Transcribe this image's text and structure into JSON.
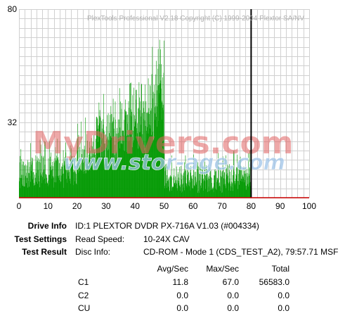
{
  "chart_data": {
    "type": "bar",
    "title": "PlexTools Professional V2.18 Copyright (C) 1999-2004 Plextor SA/NV",
    "xlabel": "",
    "ylabel": "",
    "xlim": [
      0,
      100
    ],
    "ylim": [
      0,
      80
    ],
    "x_ticks": [
      0,
      10,
      20,
      30,
      40,
      50,
      60,
      70,
      80,
      90,
      100
    ],
    "y_ticks": [
      32,
      80
    ],
    "grid": true,
    "end_marker_x": 80,
    "bar_color": "#009900",
    "marker_color": "#000000",
    "series": [
      {
        "metric": "C1",
        "segments": [
          {
            "x_start": 0,
            "x_end": 20,
            "typical_min": 4,
            "typical_max": 18,
            "peak": 25
          },
          {
            "x_start": 20,
            "x_end": 26,
            "typical_min": 10,
            "typical_max": 27,
            "peak": 34
          },
          {
            "x_start": 26,
            "x_end": 34,
            "typical_min": 14,
            "typical_max": 36,
            "peak": 44
          },
          {
            "x_start": 34,
            "x_end": 44,
            "typical_min": 18,
            "typical_max": 42,
            "peak": 49
          },
          {
            "x_start": 44,
            "x_end": 47,
            "typical_min": 22,
            "typical_max": 48,
            "peak": 64
          },
          {
            "x_start": 47,
            "x_end": 50,
            "typical_min": 30,
            "typical_max": 58,
            "peak": 67
          },
          {
            "x_start": 50,
            "x_end": 80,
            "typical_min": 2,
            "typical_max": 14,
            "peak": 20
          }
        ]
      }
    ]
  },
  "watermarks": [
    "MyDrivers.com",
    "www.stor-age.com"
  ],
  "info": {
    "drive_info_label": "Drive Info",
    "drive_info_value": "ID:1 PLEXTOR DVDR PX-716A V1.03 (#004334)",
    "test_settings_label": "Test Settings",
    "read_speed_label": "Read Speed:",
    "read_speed_value": "10-24X CAV",
    "test_result_label": "Test Result",
    "disc_info_label": "Disc Info:",
    "disc_info_value": "CD-ROM - Mode 1 (CDS_TEST_A2), 79:57.71 MSF"
  },
  "results": {
    "headers": {
      "avg": "Avg/Sec",
      "max": "Max/Sec",
      "total": "Total"
    },
    "rows": [
      {
        "name": "C1",
        "avg": "11.8",
        "max": "67.0",
        "total": "56583.0"
      },
      {
        "name": "C2",
        "avg": "0.0",
        "max": "0.0",
        "total": "0.0"
      },
      {
        "name": "CU",
        "avg": "0.0",
        "max": "0.0",
        "total": "0.0"
      }
    ]
  }
}
